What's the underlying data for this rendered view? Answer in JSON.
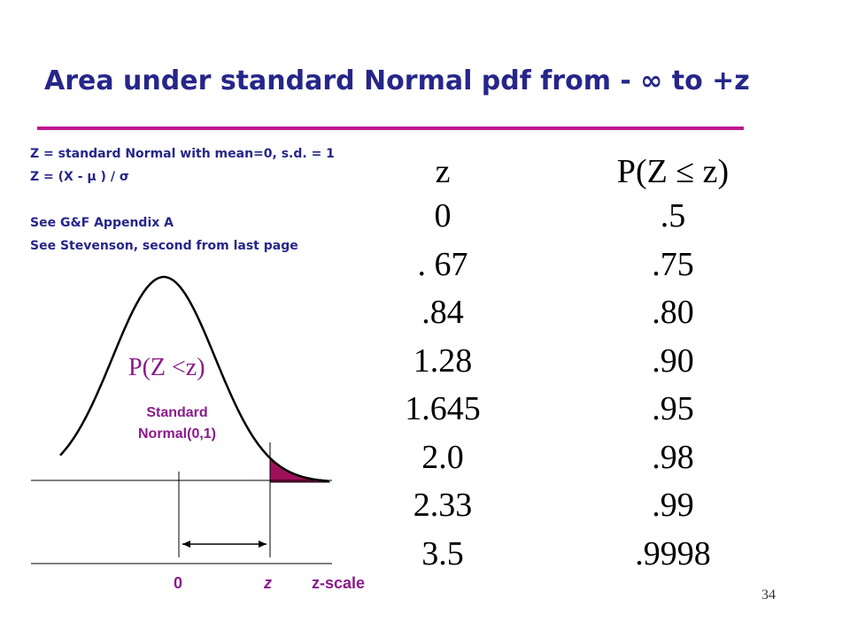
{
  "header": {
    "title": "Area under standard Normal pdf from - ∞ to +z"
  },
  "notes": [
    "Z = standard Normal with mean=0, s.d. = 1",
    "Z = (X - μ ) / σ",
    "See G&F Appendix A",
    "See Stevenson, second from last page"
  ],
  "table": {
    "columns": [
      "z",
      "P(Z ≤ z)"
    ],
    "rows": [
      [
        "0",
        ".5"
      ],
      [
        ". 67",
        ".75"
      ],
      [
        ".84",
        ".80"
      ],
      [
        "1.28",
        ".90"
      ],
      [
        "1.645",
        ".95"
      ],
      [
        "2.0",
        ".98"
      ],
      [
        "2.33",
        ".99"
      ],
      [
        "3.5",
        ".9998"
      ]
    ]
  },
  "figure": {
    "area_label": "P(Z <z)",
    "curve_label": [
      "Standard",
      "Normal(0,1)"
    ],
    "axis_labels": [
      "0",
      "z",
      "z-scale"
    ]
  },
  "footer": {
    "page": "34"
  }
}
